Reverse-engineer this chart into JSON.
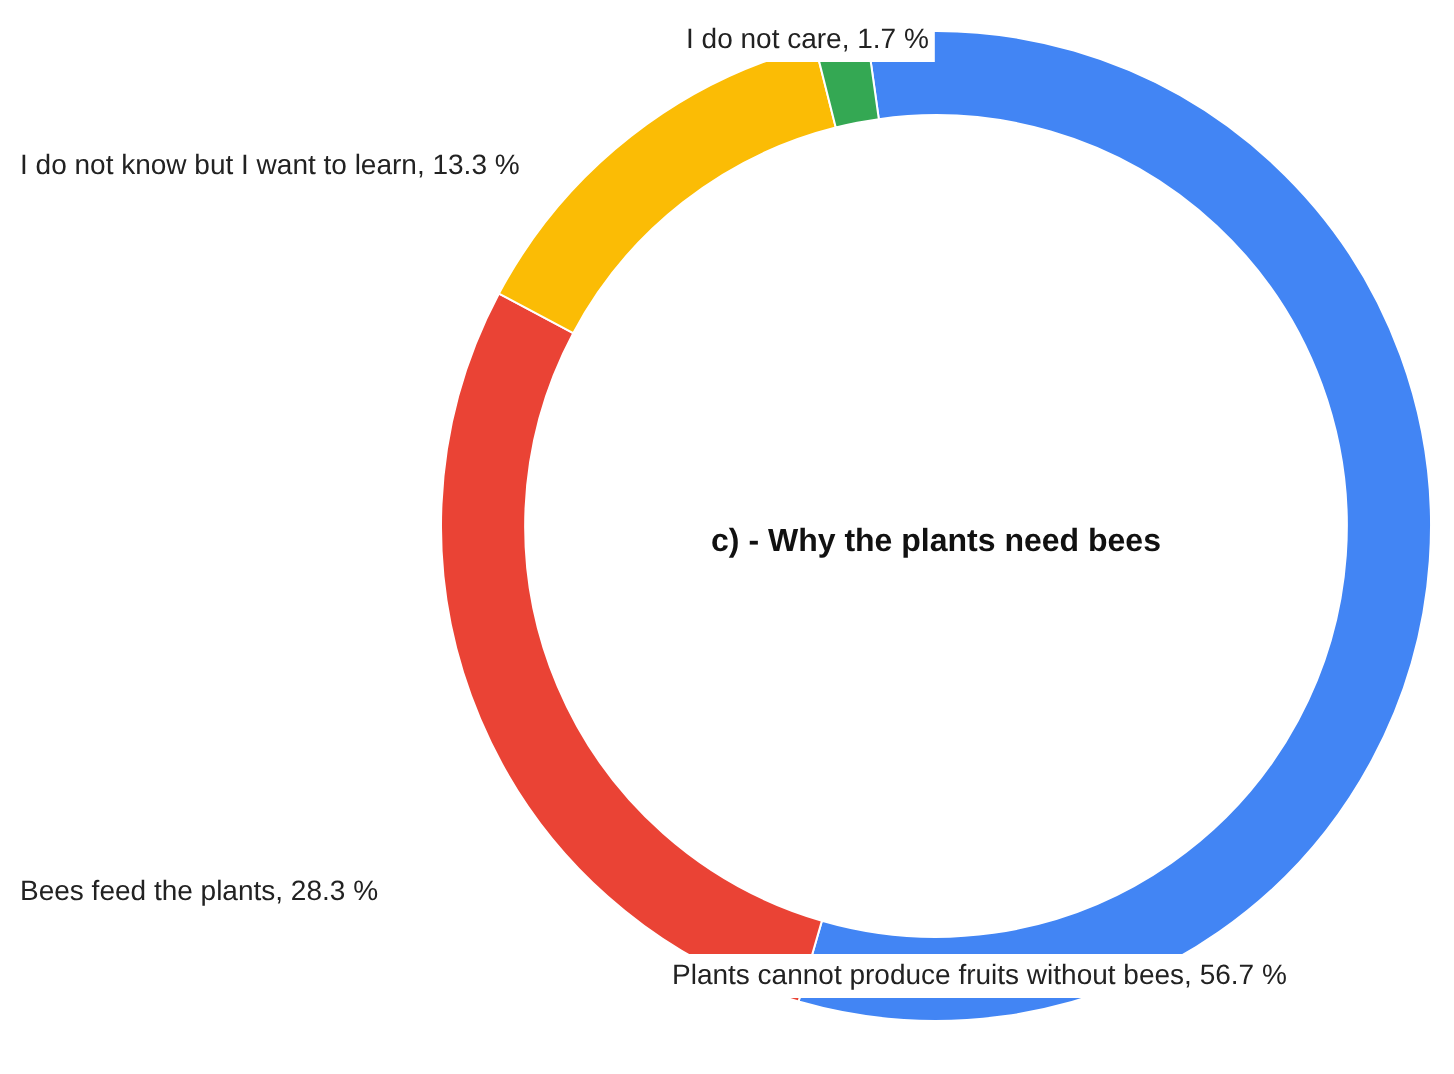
{
  "chart_data": {
    "type": "donut",
    "title": "c) - Why the plants need bees",
    "categories": [
      "Plants cannot produce fruits without bees",
      "Bees feed the plants",
      "I do not know but I want to learn",
      "I do not care"
    ],
    "values": [
      56.7,
      28.3,
      13.3,
      1.7
    ],
    "colors": [
      "#4285f4",
      "#ea4335",
      "#fbbc05",
      "#34a853"
    ],
    "value_labels": [
      ", 56.7 %",
      ", 28.3 %",
      ", 13.3 %",
      ", 1.7 %"
    ],
    "legend": false
  }
}
